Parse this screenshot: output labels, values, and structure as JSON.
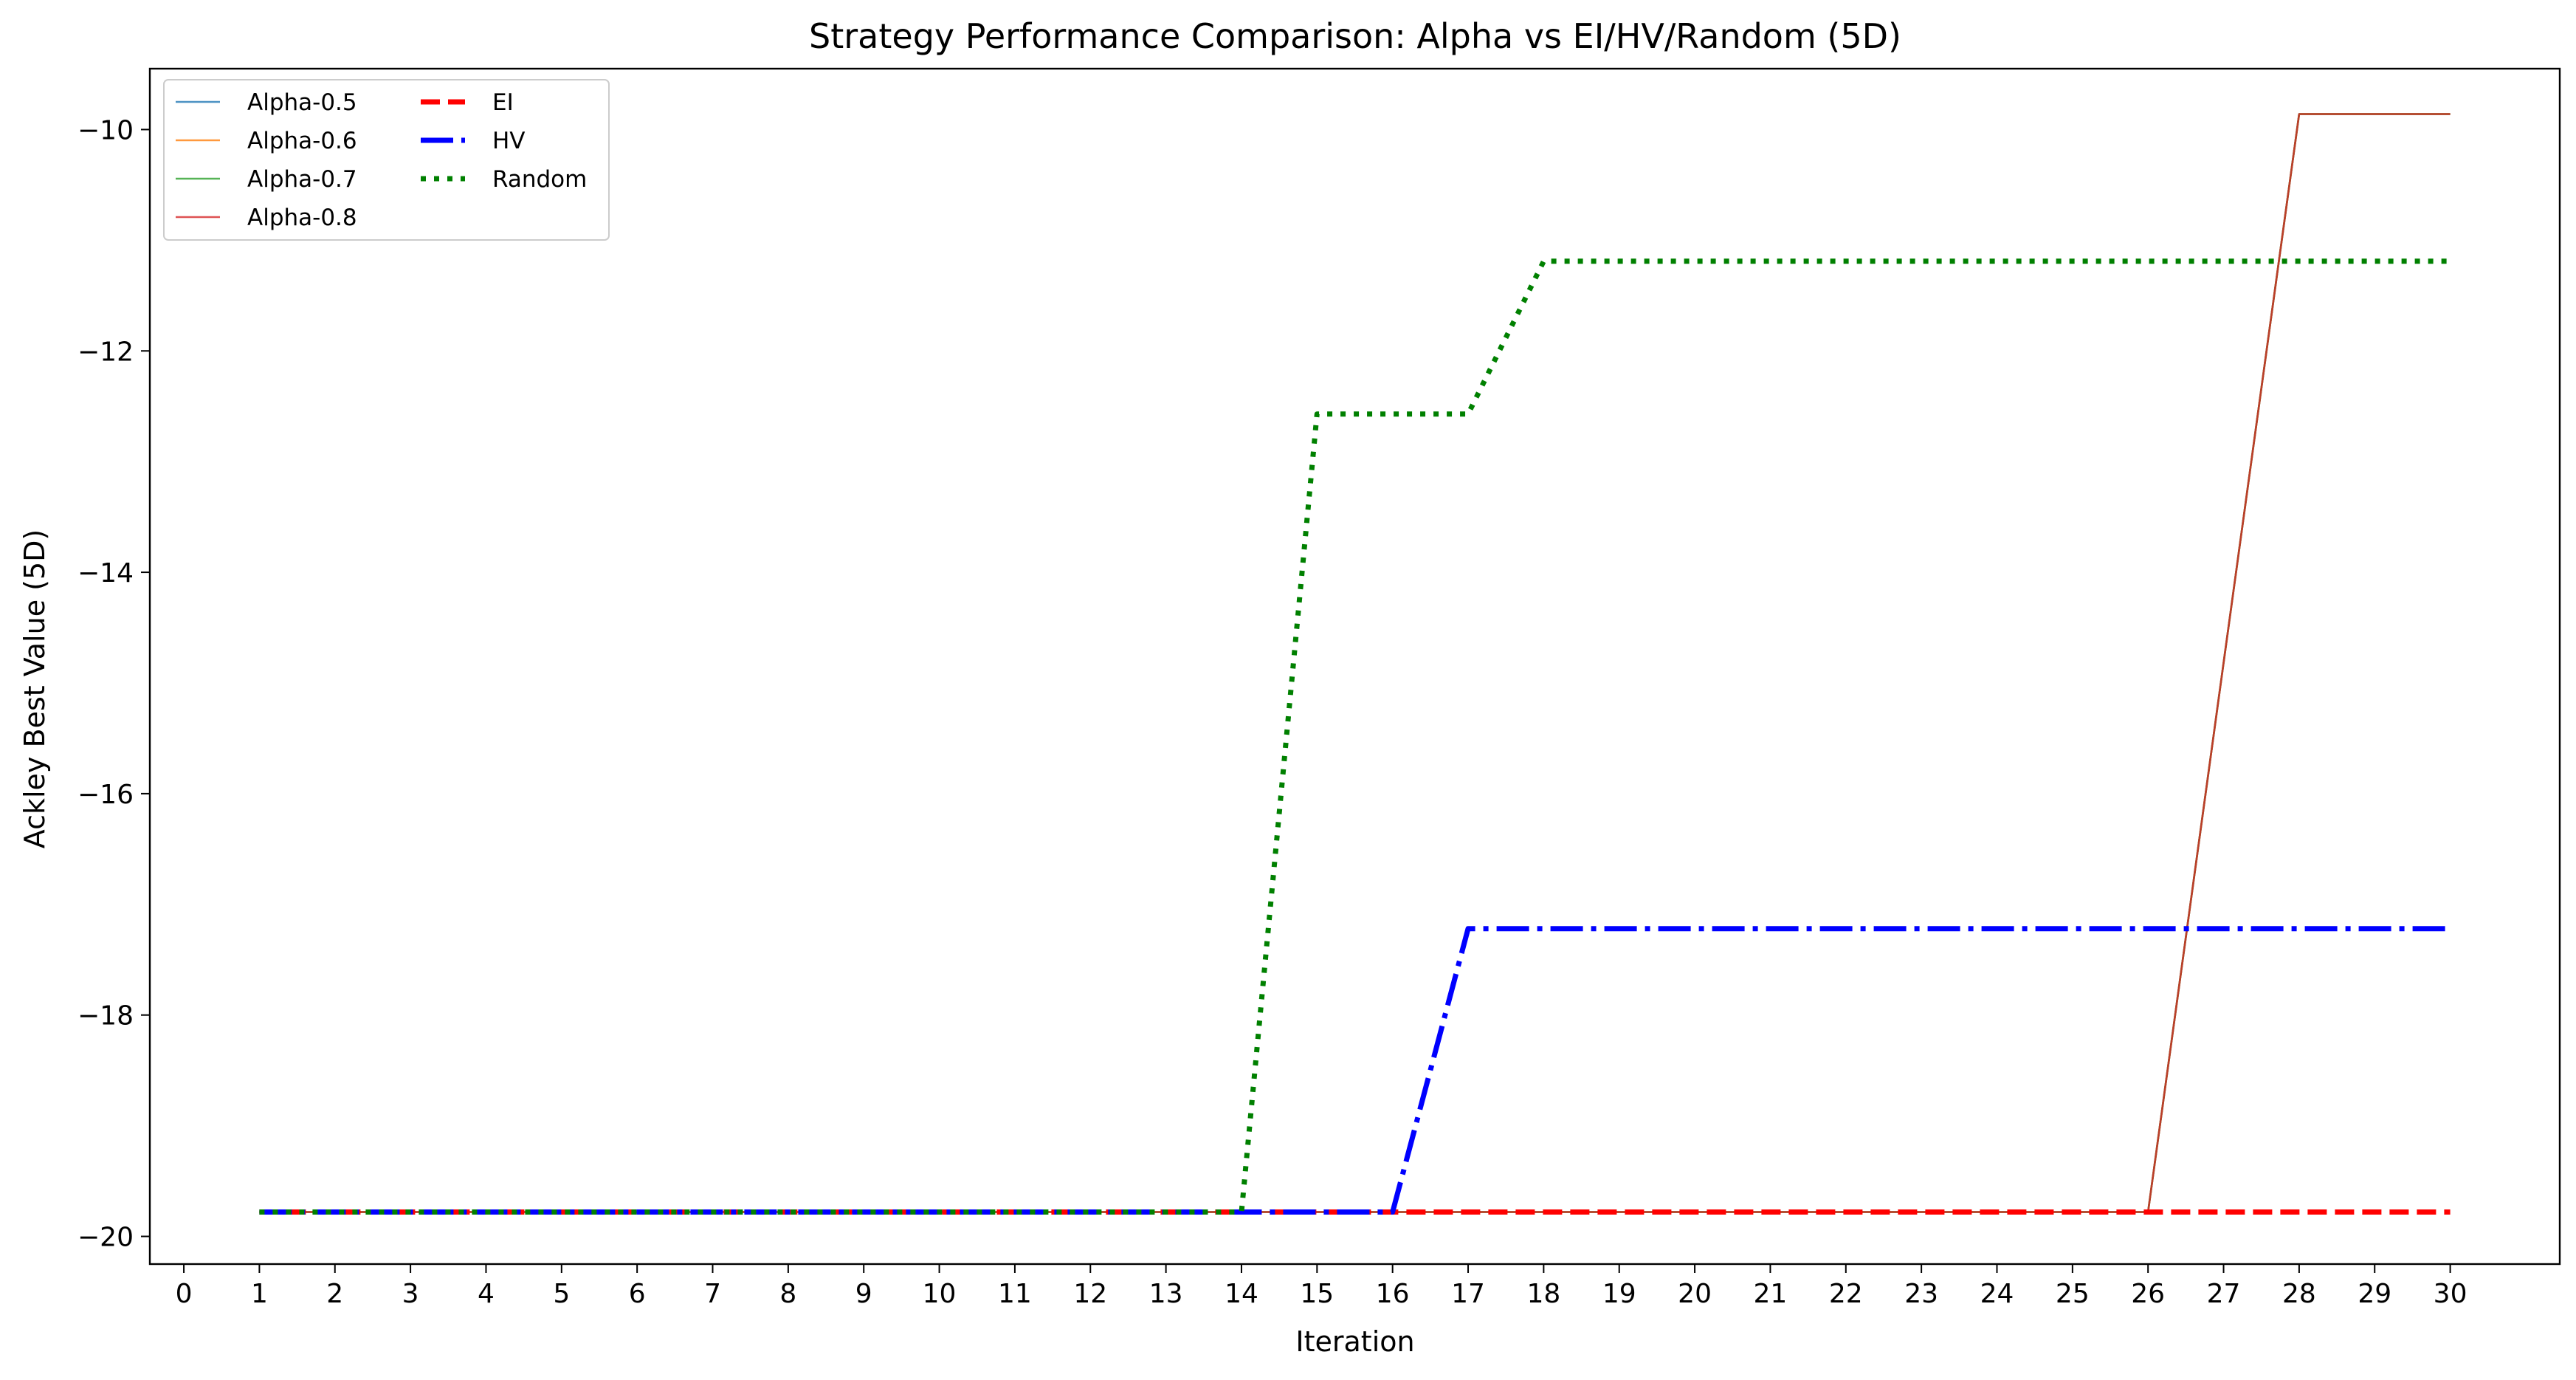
{
  "chart_data": {
    "type": "line",
    "title": "Strategy Performance Comparison: Alpha vs EI/HV/Random (5D)",
    "xlabel": "Iteration",
    "ylabel": "Ackley Best Value (5D)",
    "xlim": [
      -0.45,
      31.45
    ],
    "ylim": [
      -20.25,
      -9.45
    ],
    "xticks": [
      0,
      1,
      2,
      3,
      4,
      5,
      6,
      7,
      8,
      9,
      10,
      11,
      12,
      13,
      14,
      15,
      16,
      17,
      18,
      19,
      20,
      21,
      22,
      23,
      24,
      25,
      26,
      27,
      28,
      29,
      30
    ],
    "yticks": [
      -20,
      -18,
      -16,
      -14,
      -12,
      -10
    ],
    "ytick_labels": [
      "−20",
      "−18",
      "−16",
      "−14",
      "−12",
      "−10"
    ],
    "grid": false,
    "legend_position": "upper-left",
    "x": [
      1,
      2,
      3,
      4,
      5,
      6,
      7,
      8,
      9,
      10,
      11,
      12,
      13,
      14,
      15,
      16,
      17,
      18,
      19,
      20,
      21,
      22,
      23,
      24,
      25,
      26,
      27,
      28,
      29,
      30
    ],
    "series": [
      {
        "name": "Alpha-0.5",
        "color": "#1f77b4",
        "style": "solid",
        "width": 2.6,
        "values": [
          -19.78,
          -19.78,
          -19.78,
          -19.78,
          -19.78,
          -19.78,
          -19.78,
          -19.78,
          -19.78,
          -19.78,
          -19.78,
          -19.78,
          -19.78,
          -19.78,
          -19.78,
          -19.78,
          -19.78,
          -19.78,
          -19.78,
          -19.78,
          -19.78,
          -19.78,
          -19.78,
          -19.78,
          -19.78,
          -19.78,
          -14.82,
          -9.86,
          -9.86,
          -9.86
        ]
      },
      {
        "name": "Alpha-0.6",
        "color": "#ff7f0e",
        "style": "solid",
        "width": 2.6,
        "values": [
          -19.78,
          -19.78,
          -19.78,
          -19.78,
          -19.78,
          -19.78,
          -19.78,
          -19.78,
          -19.78,
          -19.78,
          -19.78,
          -19.78,
          -19.78,
          -19.78,
          -19.78,
          -19.78,
          -19.78,
          -19.78,
          -19.78,
          -19.78,
          -19.78,
          -19.78,
          -19.78,
          -19.78,
          -19.78,
          -19.78,
          -14.82,
          -9.86,
          -9.86,
          -9.86
        ]
      },
      {
        "name": "Alpha-0.7",
        "color": "#2ca02c",
        "style": "solid",
        "width": 2.6,
        "values": [
          -19.78,
          -19.78,
          -19.78,
          -19.78,
          -19.78,
          -19.78,
          -19.78,
          -19.78,
          -19.78,
          -19.78,
          -19.78,
          -19.78,
          -19.78,
          -19.78,
          -19.78,
          -19.78,
          -19.78,
          -19.78,
          -19.78,
          -19.78,
          -19.78,
          -19.78,
          -19.78,
          -19.78,
          -19.78,
          -19.78,
          -14.82,
          -9.86,
          -9.86,
          -9.86
        ]
      },
      {
        "name": "Alpha-0.8",
        "color": "#d62728",
        "style": "solid",
        "width": 2.6,
        "values": [
          -19.78,
          -19.78,
          -19.78,
          -19.78,
          -19.78,
          -19.78,
          -19.78,
          -19.78,
          -19.78,
          -19.78,
          -19.78,
          -19.78,
          -19.78,
          -19.78,
          -19.78,
          -19.78,
          -19.78,
          -19.78,
          -19.78,
          -19.78,
          -19.78,
          -19.78,
          -19.78,
          -19.78,
          -19.78,
          -19.78,
          -14.82,
          -9.86,
          -9.86,
          -9.86
        ]
      },
      {
        "name": "EI",
        "color": "#ff0000",
        "style": "dashed",
        "width": 7,
        "values": [
          -19.78,
          -19.78,
          -19.78,
          -19.78,
          -19.78,
          -19.78,
          -19.78,
          -19.78,
          -19.78,
          -19.78,
          -19.78,
          -19.78,
          -19.78,
          -19.78,
          -19.78,
          -19.78,
          -19.78,
          -19.78,
          -19.78,
          -19.78,
          -19.78,
          -19.78,
          -19.78,
          -19.78,
          -19.78,
          -19.78,
          -19.78,
          -19.78,
          -19.78,
          -19.78
        ]
      },
      {
        "name": "HV",
        "color": "#0000ff",
        "style": "dashdot",
        "width": 7,
        "values": [
          -19.78,
          -19.78,
          -19.78,
          -19.78,
          -19.78,
          -19.78,
          -19.78,
          -19.78,
          -19.78,
          -19.78,
          -19.78,
          -19.78,
          -19.78,
          -19.78,
          -19.78,
          -19.78,
          -17.22,
          -17.22,
          -17.22,
          -17.22,
          -17.22,
          -17.22,
          -17.22,
          -17.22,
          -17.22,
          -17.22,
          -17.22,
          -17.22,
          -17.22,
          -17.22
        ]
      },
      {
        "name": "Random",
        "color": "#008000",
        "style": "dotted",
        "width": 7,
        "values": [
          -19.78,
          -19.78,
          -19.78,
          -19.78,
          -19.78,
          -19.78,
          -19.78,
          -19.78,
          -19.78,
          -19.78,
          -19.78,
          -19.78,
          -19.78,
          -19.78,
          -12.57,
          -12.57,
          -12.57,
          -11.19,
          -11.19,
          -11.19,
          -11.19,
          -11.19,
          -11.19,
          -11.19,
          -11.19,
          -11.19,
          -11.19,
          -11.19,
          -11.19,
          -11.19
        ]
      }
    ]
  }
}
